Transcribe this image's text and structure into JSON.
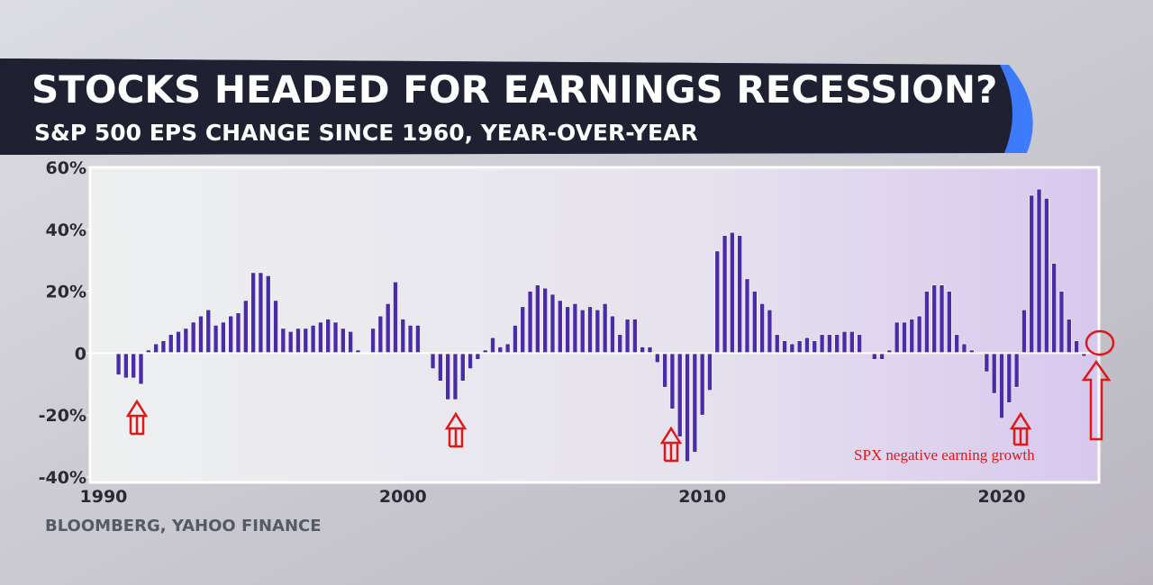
{
  "chart_data": {
    "type": "bar",
    "title": "STOCKS HEADED FOR EARNINGS RECESSION?",
    "subtitle": "S&P 500 EPS CHANGE SINCE 1960, YEAR-OVER-YEAR",
    "source": "BLOOMBERG, YAHOO FINANCE",
    "annotation": "SPX negative earning growth",
    "color": "#4a2ba8",
    "x": [
      1990.5,
      1990.75,
      1991,
      1991.25,
      1991.5,
      1991.75,
      1992,
      1992.25,
      1992.5,
      1992.75,
      1993,
      1993.25,
      1993.5,
      1993.75,
      1994,
      1994.25,
      1994.5,
      1994.75,
      1995,
      1995.25,
      1995.5,
      1995.75,
      1996,
      1996.25,
      1996.5,
      1996.75,
      1997,
      1997.25,
      1997.5,
      1997.75,
      1998,
      1998.25,
      1998.5,
      1998.75,
      1999,
      1999.25,
      1999.5,
      1999.75,
      2000,
      2000.25,
      2000.5,
      2000.75,
      2001,
      2001.25,
      2001.5,
      2001.75,
      2002,
      2002.25,
      2002.5,
      2002.75,
      2003,
      2003.25,
      2003.5,
      2003.75,
      2004,
      2004.25,
      2004.5,
      2004.75,
      2005,
      2005.25,
      2005.5,
      2005.75,
      2006,
      2006.25,
      2006.5,
      2006.75,
      2007,
      2007.25,
      2007.5,
      2007.75,
      2008,
      2008.25,
      2008.5,
      2008.75,
      2009,
      2009.25,
      2009.5,
      2009.75,
      2010,
      2010.25,
      2010.5,
      2010.75,
      2011,
      2011.25,
      2011.5,
      2011.75,
      2012,
      2012.25,
      2012.5,
      2012.75,
      2013,
      2013.25,
      2013.5,
      2013.75,
      2014,
      2014.25,
      2014.5,
      2014.75,
      2015,
      2015.25,
      2015.5,
      2015.75,
      2016,
      2016.25,
      2016.5,
      2016.75,
      2017,
      2017.25,
      2017.5,
      2017.75,
      2018,
      2018.25,
      2018.5,
      2018.75,
      2019,
      2019.25,
      2019.5,
      2019.75,
      2020,
      2020.25,
      2020.5,
      2020.75,
      2021,
      2021.25,
      2021.5,
      2021.75,
      2022,
      2022.25,
      2022.5,
      2022.75
    ],
    "values": [
      -7,
      -8,
      -8,
      -10,
      1,
      3,
      4,
      6,
      7,
      8,
      10,
      12,
      14,
      9,
      10,
      12,
      13,
      17,
      26,
      26,
      25,
      17,
      8,
      7,
      8,
      8,
      9,
      10,
      11,
      10,
      8,
      7,
      1,
      0,
      8,
      12,
      16,
      23,
      11,
      9,
      9,
      0,
      -5,
      -9,
      -15,
      -15,
      -9,
      -5,
      -2,
      1,
      5,
      2,
      3,
      9,
      15,
      20,
      22,
      21,
      19,
      17,
      15,
      16,
      14,
      15,
      14,
      16,
      12,
      6,
      11,
      11,
      2,
      2,
      -3,
      -11,
      -18,
      -27,
      -35,
      -32,
      -20,
      -12,
      33,
      38,
      39,
      38,
      24,
      20,
      16,
      14,
      6,
      4,
      3,
      4,
      5,
      4,
      6,
      6,
      6,
      7,
      7,
      6,
      0,
      -2,
      -2,
      1,
      10,
      10,
      11,
      12,
      20,
      22,
      22,
      20,
      6,
      3,
      1,
      0,
      -6,
      -13,
      -21,
      -16,
      -11,
      14,
      51,
      53,
      50,
      29,
      20,
      11,
      4,
      -1
    ],
    "xlim": [
      1989.55,
      2023.25
    ],
    "xticks": [
      1990,
      2000,
      2010,
      2020
    ],
    "ylim": [
      -40,
      60
    ],
    "yticks": [
      {
        "value": -40,
        "label": "-40%"
      },
      {
        "value": -20,
        "label": "-20%"
      },
      0,
      {
        "value": 20,
        "label": "20%"
      },
      {
        "value": 40,
        "label": "40%"
      },
      {
        "value": 60,
        "label": "60%"
      }
    ]
  }
}
